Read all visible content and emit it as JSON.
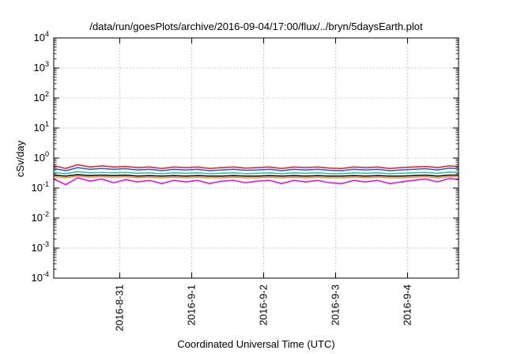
{
  "chart_data": {
    "type": "line",
    "title": "/data/run/goesPlots/archive/2016-09-04/17:00/flux/../bryn/5daysEarth.plot",
    "xlabel": "Coordinated Universal Time (UTC)",
    "ylabel": "cSv/day",
    "y_scale": "log",
    "ylim": [
      0.0001,
      10000
    ],
    "xlim": [
      "2016-08-30T02:00",
      "2016-09-04T17:00"
    ],
    "grid": true,
    "legend": "none",
    "y_ticks": [
      {
        "mantissa": "10",
        "exp": "-4"
      },
      {
        "mantissa": "10",
        "exp": "-3"
      },
      {
        "mantissa": "10",
        "exp": "-2"
      },
      {
        "mantissa": "10",
        "exp": "-1"
      },
      {
        "mantissa": "10",
        "exp": "0"
      },
      {
        "mantissa": "10",
        "exp": "1"
      },
      {
        "mantissa": "10",
        "exp": "2"
      },
      {
        "mantissa": "10",
        "exp": "3"
      },
      {
        "mantissa": "10",
        "exp": "4"
      }
    ],
    "x_ticks": [
      "2016-8-31",
      "2016-9-1",
      "2016-9-2",
      "2016-9-3",
      "2016-9-4"
    ],
    "x": [
      "2016-08-30T02:00",
      "2016-08-30T06:00",
      "2016-08-30T10:00",
      "2016-08-30T14:00",
      "2016-08-30T18:00",
      "2016-08-30T22:00",
      "2016-08-31T02:00",
      "2016-08-31T06:00",
      "2016-08-31T10:00",
      "2016-08-31T14:00",
      "2016-08-31T18:00",
      "2016-08-31T22:00",
      "2016-09-01T02:00",
      "2016-09-01T06:00",
      "2016-09-01T10:00",
      "2016-09-01T14:00",
      "2016-09-01T18:00",
      "2016-09-01T22:00",
      "2016-09-02T02:00",
      "2016-09-02T06:00",
      "2016-09-02T10:00",
      "2016-09-02T14:00",
      "2016-09-02T18:00",
      "2016-09-02T22:00",
      "2016-09-03T02:00",
      "2016-09-03T06:00",
      "2016-09-03T10:00",
      "2016-09-03T14:00",
      "2016-09-03T18:00",
      "2016-09-03T22:00",
      "2016-09-04T02:00",
      "2016-09-04T06:00",
      "2016-09-04T10:00",
      "2016-09-04T14:00",
      "2016-09-04T17:00"
    ],
    "series": [
      {
        "color": "#e41a1c",
        "values": [
          0.55,
          0.45,
          0.6,
          0.5,
          0.55,
          0.5,
          0.52,
          0.48,
          0.5,
          0.45,
          0.5,
          0.48,
          0.5,
          0.45,
          0.48,
          0.5,
          0.46,
          0.48,
          0.5,
          0.45,
          0.5,
          0.48,
          0.5,
          0.46,
          0.45,
          0.5,
          0.48,
          0.5,
          0.45,
          0.48,
          0.5,
          0.52,
          0.48,
          0.55,
          0.52
        ]
      },
      {
        "color": "#2255ee",
        "values": [
          0.45,
          0.38,
          0.48,
          0.42,
          0.45,
          0.42,
          0.44,
          0.4,
          0.42,
          0.38,
          0.42,
          0.4,
          0.42,
          0.38,
          0.4,
          0.42,
          0.39,
          0.4,
          0.42,
          0.38,
          0.42,
          0.4,
          0.42,
          0.39,
          0.38,
          0.42,
          0.4,
          0.42,
          0.38,
          0.4,
          0.42,
          0.44,
          0.4,
          0.46,
          0.44
        ]
      },
      {
        "color": "#20c0a8",
        "values": [
          0.33,
          0.3,
          0.35,
          0.32,
          0.33,
          0.32,
          0.33,
          0.31,
          0.32,
          0.3,
          0.32,
          0.31,
          0.32,
          0.3,
          0.31,
          0.32,
          0.3,
          0.31,
          0.32,
          0.3,
          0.32,
          0.31,
          0.32,
          0.3,
          0.3,
          0.32,
          0.31,
          0.32,
          0.3,
          0.31,
          0.32,
          0.33,
          0.31,
          0.34,
          0.33
        ]
      },
      {
        "color": "#000000",
        "values": [
          0.27,
          0.25,
          0.28,
          0.26,
          0.27,
          0.26,
          0.27,
          0.25,
          0.26,
          0.25,
          0.26,
          0.25,
          0.26,
          0.25,
          0.25,
          0.26,
          0.25,
          0.25,
          0.26,
          0.25,
          0.26,
          0.25,
          0.26,
          0.25,
          0.25,
          0.26,
          0.25,
          0.26,
          0.25,
          0.25,
          0.26,
          0.27,
          0.25,
          0.27,
          0.27
        ]
      },
      {
        "color": "#ff8c2a",
        "values": [
          0.24,
          0.22,
          0.25,
          0.23,
          0.24,
          0.23,
          0.24,
          0.22,
          0.23,
          0.22,
          0.23,
          0.22,
          0.23,
          0.22,
          0.22,
          0.23,
          0.22,
          0.22,
          0.23,
          0.22,
          0.23,
          0.22,
          0.23,
          0.22,
          0.22,
          0.23,
          0.22,
          0.23,
          0.22,
          0.22,
          0.23,
          0.24,
          0.22,
          0.24,
          0.24
        ]
      },
      {
        "color": "#ee00ee",
        "values": [
          0.2,
          0.13,
          0.22,
          0.17,
          0.2,
          0.15,
          0.19,
          0.16,
          0.18,
          0.14,
          0.18,
          0.16,
          0.18,
          0.14,
          0.17,
          0.18,
          0.15,
          0.17,
          0.18,
          0.14,
          0.18,
          0.16,
          0.18,
          0.15,
          0.14,
          0.18,
          0.16,
          0.18,
          0.14,
          0.16,
          0.18,
          0.2,
          0.16,
          0.21,
          0.19
        ]
      }
    ]
  }
}
